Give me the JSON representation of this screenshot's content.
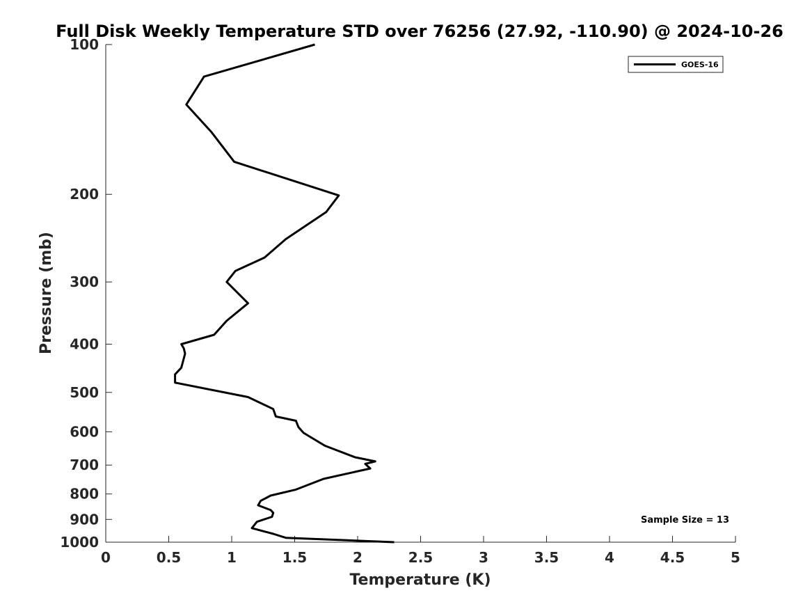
{
  "chart_data": {
    "type": "line",
    "title": "Full Disk Weekly Temperature STD over 76256 (27.92, -110.90) @ 2024-10-26",
    "xlabel": "Temperature (K)",
    "ylabel": "Pressure (mb)",
    "xlim": [
      0,
      5
    ],
    "ylim": [
      1000,
      100
    ],
    "y_scale": "log",
    "y_reversed": true,
    "x_ticks": [
      "0",
      "0.5",
      "1",
      "1.5",
      "2",
      "2.5",
      "3",
      "3.5",
      "4",
      "4.5",
      "5"
    ],
    "y_ticks": [
      "100",
      "200",
      "300",
      "400",
      "500",
      "600",
      "700",
      "800",
      "900",
      "1000"
    ],
    "grid": false,
    "legend_position": "top-right",
    "annotation": "Sample Size = 13",
    "series": [
      {
        "name": "GOES-16",
        "color": "#000000",
        "x": [
          1.66,
          0.78,
          0.64,
          0.84,
          1.02,
          1.85,
          1.75,
          1.43,
          1.26,
          1.03,
          0.96,
          1.13,
          0.96,
          0.86,
          0.6,
          0.62,
          0.63,
          0.6,
          0.55,
          0.55,
          1.13,
          1.33,
          1.35,
          1.51,
          1.53,
          1.57,
          1.74,
          1.98,
          2.14,
          2.06,
          2.1,
          1.73,
          1.51,
          1.31,
          1.23,
          1.21,
          1.31,
          1.33,
          1.32,
          1.2,
          1.16,
          1.33,
          1.43,
          2.29
        ],
        "y": [
          100,
          116,
          132,
          150,
          172,
          201,
          217,
          246,
          268,
          285,
          300,
          331,
          359,
          383,
          400,
          408,
          418,
          446,
          460,
          478,
          511,
          540,
          559,
          570,
          587,
          603,
          640,
          675,
          688,
          696,
          711,
          746,
          784,
          806,
          826,
          843,
          862,
          873,
          889,
          910,
          937,
          962,
          980,
          1000
        ]
      }
    ]
  }
}
